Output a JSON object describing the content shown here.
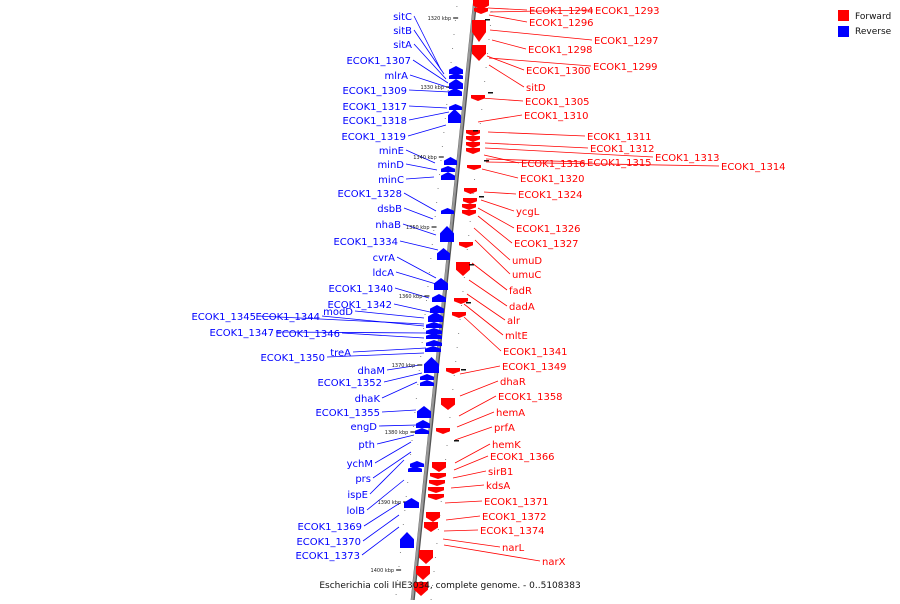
{
  "colors": {
    "forward": "#ff0000",
    "reverse": "#0000ff",
    "axis": "#9a9a9a",
    "tick": "#222222"
  },
  "legend": [
    {
      "label": "Forward",
      "color": "#ff0000"
    },
    {
      "label": "Reverse",
      "color": "#0000ff"
    }
  ],
  "footer": "Escherichia coli IHE3034, complete genome. - 0..5108383",
  "ticks": [
    "1320 kbp",
    "1330 kbp",
    "1340 kbp",
    "1350 kbp",
    "1360 kbp",
    "1370 kbp",
    "1380 kbp",
    "1390 kbp",
    "1400 kbp"
  ],
  "reverse_genes": [
    "sitC",
    "sitB",
    "sitA",
    "ECOK1_1307",
    "mlrA",
    "ECOK1_1309",
    "ECOK1_1317",
    "ECOK1_1318",
    "ECOK1_1319",
    "minE",
    "minD",
    "minC",
    "ECOK1_1328",
    "dsbB",
    "nhaB",
    "ECOK1_1334",
    "cvrA",
    "ldcA",
    "ECOK1_1340",
    "ECOK1_1342",
    "modD",
    "ECOK1_1345",
    "ECOK1_1344",
    "ECOK1_1347",
    "ECOK1_1346",
    "treA",
    "ECOK1_1350",
    "dhaM",
    "ECOK1_1352",
    "dhaK",
    "ECOK1_1355",
    "engD",
    "pth",
    "ychM",
    "prs",
    "ispE",
    "lolB",
    "ECOK1_1369",
    "ECOK1_1370",
    "ECOK1_1373"
  ],
  "forward_genes": [
    "ECOK1_1294",
    "ECOK1_1293",
    "ECOK1_1296",
    "ECOK1_1297",
    "ECOK1_1298",
    "ECOK1_1299",
    "ECOK1_1300",
    "sitD",
    "ECOK1_1305",
    "ECOK1_1310",
    "ECOK1_1311",
    "ECOK1_1312",
    "ECOK1_1313",
    "ECOK1_1316",
    "ECOK1_1315",
    "ECOK1_1314",
    "ECOK1_1320",
    "ECOK1_1324",
    "ycgL",
    "ECOK1_1326",
    "ECOK1_1327",
    "umuD",
    "umuC",
    "fadR",
    "dadA",
    "alr",
    "mltE",
    "ECOK1_1341",
    "ECOK1_1349",
    "dhaR",
    "ECOK1_1358",
    "hemA",
    "prfA",
    "hemK",
    "ECOK1_1366",
    "sirB1",
    "kdsA",
    "ECOK1_1371",
    "ECOK1_1372",
    "ECOK1_1374",
    "narL",
    "narX"
  ]
}
